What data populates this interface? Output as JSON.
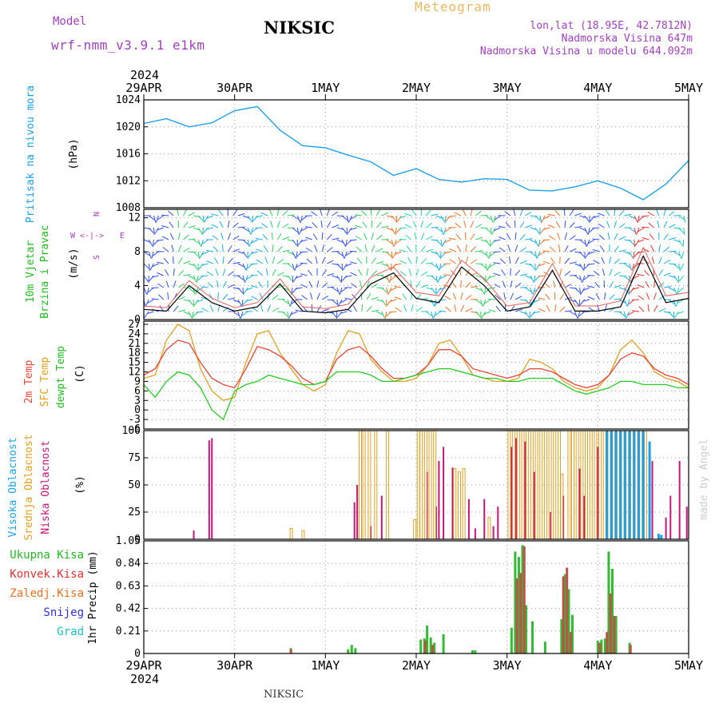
{
  "header": {
    "model_label": "Model",
    "model_name": "wrf-nmm_v3.9.1  e1km",
    "title": "NIKSIC",
    "meteogram_label": "Meteogram",
    "lonlat": "lon,lat (18.95E, 42.7812N)",
    "altitude": "Nadmorska Visina 647m",
    "model_altitude": "Nadmorska Visina u modelu 644.092m",
    "year": "2024",
    "footer_station": "NIKSIC",
    "credit": "made by Angel"
  },
  "time_axis": {
    "labels": [
      "29APR",
      "30APR",
      "1MAY",
      "2MAY",
      "3MAY",
      "4MAY",
      "5MAY"
    ],
    "year": "2024"
  },
  "panels": {
    "pressure": {
      "ylabel_left": "Pritisak na nivou mora",
      "unit": "(hPa)"
    },
    "wind": {
      "ylabel_1": "10m Vjetar",
      "ylabel_2": "Brzina i Pravac",
      "unit": "(m/s)",
      "compass_w": "W",
      "compass_e": "E",
      "compass_n": "N",
      "compass_s": "S",
      "compass_mid": "<-|->"
    },
    "temp": {
      "label_2m": "2m Temp",
      "label_sfc": "SFC Temp",
      "label_dew": "dewpt Temp",
      "unit": "(C)"
    },
    "cloud": {
      "label_high": "Visoka Oblacnost",
      "label_mid": "Srednja Oblacnost",
      "label_low": "Niska Oblacnost",
      "unit": "(%)"
    },
    "precip": {
      "legend": [
        "Ukupna Kisa",
        "Konvek.Kisa",
        "Zaledj.Kisa",
        "Snijeg",
        "Grad"
      ],
      "unit": "1hr Precip (mm)"
    }
  },
  "colors": {
    "pressure": "#1ea0e6",
    "temp2m": "#e8443a",
    "sfc": "#e0a020",
    "dew": "#22cc22",
    "wind_speed": "#000000",
    "wind_gust": "#e0605a",
    "high_cloud": "#1ea0e6",
    "mid_cloud": "#e0a020",
    "low_cloud": "#c8157a",
    "total_rain": "#33bb33",
    "conv_rain": "#c0504a",
    "purple_text": "#a040c0"
  },
  "chart_data": [
    {
      "type": "line",
      "title": "",
      "ylabel": "Pritisak na nivou mora (hPa)",
      "ylim": [
        1008,
        1024
      ],
      "yticks": [
        1008,
        1012,
        1016,
        1020,
        1024
      ],
      "x_days": [
        0,
        0.25,
        0.5,
        0.75,
        1.0,
        1.25,
        1.5,
        1.75,
        2.0,
        2.25,
        2.5,
        2.75,
        3.0,
        3.25,
        3.5,
        3.75,
        4.0,
        4.25,
        4.5,
        4.75,
        5.0,
        5.25,
        5.5,
        5.75,
        6.0
      ],
      "series": [
        {
          "name": "Pritisak na nivou mora",
          "values": [
            1020.5,
            1021.2,
            1020.0,
            1020.6,
            1022.4,
            1023.0,
            1019.5,
            1017.2,
            1016.9,
            1015.8,
            1014.8,
            1012.8,
            1013.8,
            1012.2,
            1011.8,
            1012.3,
            1012.2,
            1010.6,
            1010.5,
            1011.1,
            1012.0,
            1010.9,
            1009.2,
            1011.5,
            1015.0
          ]
        }
      ]
    },
    {
      "type": "line",
      "title": "",
      "ylabel": "10m Vjetar Brzina i Pravac (m/s)",
      "ylim": [
        0,
        13
      ],
      "yticks": [
        0,
        4,
        8,
        12
      ],
      "x_days": [
        0,
        0.25,
        0.5,
        0.75,
        1.0,
        1.25,
        1.5,
        1.75,
        2.0,
        2.25,
        2.5,
        2.75,
        3.0,
        3.25,
        3.5,
        3.75,
        4.0,
        4.25,
        4.5,
        4.75,
        5.0,
        5.25,
        5.5,
        5.75,
        6.0
      ],
      "series": [
        {
          "name": "speed",
          "values": [
            1.2,
            1.0,
            4.0,
            2.0,
            1.0,
            1.5,
            4.2,
            1.0,
            0.8,
            1.2,
            4.2,
            5.5,
            2.5,
            2.0,
            6.2,
            4.0,
            1.0,
            1.5,
            5.8,
            1.0,
            1.0,
            1.5,
            7.5,
            2.0,
            2.5
          ]
        },
        {
          "name": "gust",
          "values": [
            1.6,
            1.4,
            4.6,
            2.5,
            1.4,
            2.0,
            4.8,
            1.5,
            1.3,
            1.8,
            5.0,
            6.2,
            3.2,
            2.8,
            7.0,
            4.8,
            1.6,
            2.0,
            6.6,
            1.6,
            1.6,
            2.2,
            8.5,
            2.8,
            3.2
          ]
        }
      ]
    },
    {
      "type": "line",
      "title": "",
      "ylabel": "Temperature (C)",
      "ylim": [
        -6,
        28
      ],
      "yticks": [
        -6,
        -3,
        0,
        3,
        6,
        9,
        12,
        15,
        18,
        21,
        24,
        27
      ],
      "x_days": [
        0,
        0.125,
        0.25,
        0.375,
        0.5,
        0.625,
        0.75,
        0.875,
        1.0,
        1.125,
        1.25,
        1.375,
        1.5,
        1.625,
        1.75,
        1.875,
        2.0,
        2.125,
        2.25,
        2.375,
        2.5,
        2.625,
        2.75,
        2.875,
        3.0,
        3.125,
        3.25,
        3.375,
        3.5,
        3.625,
        3.75,
        3.875,
        4.0,
        4.125,
        4.25,
        4.375,
        4.5,
        4.625,
        4.75,
        4.875,
        5.0,
        5.125,
        5.25,
        5.375,
        5.5,
        5.625,
        5.75,
        5.875,
        6.0
      ],
      "series": [
        {
          "name": "2m Temp",
          "values": [
            11,
            13,
            19,
            22,
            21,
            15,
            10,
            8,
            7,
            13,
            20,
            19,
            17,
            14,
            10,
            8,
            9,
            16,
            19,
            20,
            17,
            13,
            10,
            10,
            11,
            14,
            19,
            19,
            17,
            13,
            12,
            11,
            10,
            11,
            13,
            13,
            12,
            10,
            8,
            7,
            8,
            11,
            16,
            18,
            17,
            13,
            11,
            10,
            8
          ]
        },
        {
          "name": "SFC Temp",
          "values": [
            10,
            11,
            22,
            27,
            25,
            13,
            6,
            3,
            4,
            15,
            24,
            25,
            18,
            13,
            8,
            6,
            8,
            18,
            25,
            24,
            16,
            12,
            9,
            9,
            10,
            14,
            21,
            22,
            17,
            11,
            10,
            9,
            9,
            10,
            16,
            15,
            13,
            9,
            7,
            6,
            7,
            11,
            19,
            22,
            18,
            12,
            10,
            9,
            7
          ]
        },
        {
          "name": "dewpt Temp",
          "values": [
            8,
            4,
            9,
            12,
            11,
            7,
            0,
            -3,
            6,
            8,
            9,
            11,
            10,
            9,
            8,
            8,
            9,
            12,
            12,
            12,
            11,
            9,
            9,
            10,
            11,
            12,
            13,
            13,
            12,
            11,
            10,
            10,
            9,
            9,
            10,
            10,
            10,
            8,
            6,
            5,
            6,
            7,
            9,
            9,
            8,
            8,
            8,
            7,
            7
          ]
        }
      ]
    },
    {
      "type": "bar",
      "title": "",
      "ylabel": "Oblacnost (%)",
      "ylim": [
        0,
        100
      ],
      "yticks": [
        0,
        25,
        50,
        75,
        100
      ],
      "series": [
        {
          "name": "Niska Oblacnost",
          "bars": [
            [
              0.55,
              8
            ],
            [
              0.72,
              91
            ],
            [
              0.75,
              93
            ],
            [
              2.32,
              34
            ],
            [
              2.35,
              50
            ],
            [
              2.5,
              12
            ],
            [
              2.62,
              40
            ],
            [
              3.12,
              62
            ],
            [
              3.22,
              30
            ],
            [
              3.25,
              72
            ],
            [
              3.3,
              85
            ],
            [
              3.4,
              66
            ],
            [
              3.58,
              37
            ],
            [
              3.65,
              10
            ],
            [
              3.75,
              37
            ],
            [
              3.85,
              12
            ],
            [
              3.9,
              30
            ],
            [
              4.05,
              85
            ],
            [
              4.1,
              93
            ],
            [
              4.2,
              90
            ],
            [
              4.3,
              62
            ],
            [
              4.48,
              25
            ],
            [
              4.62,
              40
            ],
            [
              4.8,
              65
            ],
            [
              4.85,
              40
            ],
            [
              5.0,
              85
            ],
            [
              5.1,
              70
            ],
            [
              5.2,
              95
            ],
            [
              5.35,
              72
            ],
            [
              5.6,
              72
            ],
            [
              5.75,
              20
            ],
            [
              5.8,
              40
            ],
            [
              5.9,
              72
            ],
            [
              5.98,
              30
            ]
          ]
        },
        {
          "name": "Srednja Oblacnost",
          "bars": [
            [
              1.62,
              10
            ],
            [
              1.75,
              8
            ],
            [
              2.38,
              100
            ],
            [
              2.42,
              100
            ],
            [
              2.48,
              100
            ],
            [
              2.55,
              100
            ],
            [
              2.68,
              100
            ],
            [
              2.98,
              18
            ],
            [
              3.02,
              100
            ],
            [
              3.05,
              100
            ],
            [
              3.1,
              100
            ],
            [
              3.15,
              100
            ],
            [
              3.2,
              100
            ],
            [
              3.42,
              65
            ],
            [
              3.47,
              62
            ],
            [
              3.52,
              65
            ],
            [
              3.8,
              20
            ],
            [
              4.02,
              100
            ],
            [
              4.07,
              100
            ],
            [
              4.12,
              100
            ],
            [
              4.17,
              100
            ],
            [
              4.22,
              100
            ],
            [
              4.27,
              100
            ],
            [
              4.32,
              100
            ],
            [
              4.37,
              100
            ],
            [
              4.42,
              100
            ],
            [
              4.47,
              100
            ],
            [
              4.52,
              100
            ],
            [
              4.57,
              100
            ],
            [
              4.6,
              60
            ],
            [
              4.68,
              100
            ],
            [
              4.72,
              100
            ],
            [
              4.77,
              100
            ],
            [
              4.82,
              100
            ],
            [
              4.87,
              100
            ],
            [
              4.92,
              100
            ],
            [
              4.97,
              100
            ],
            [
              5.02,
              100
            ],
            [
              5.07,
              100
            ],
            [
              5.12,
              100
            ],
            [
              5.17,
              100
            ],
            [
              5.22,
              100
            ],
            [
              5.27,
              100
            ],
            [
              5.32,
              100
            ],
            [
              5.37,
              100
            ],
            [
              5.42,
              100
            ],
            [
              5.47,
              100
            ],
            [
              5.52,
              100
            ]
          ]
        },
        {
          "name": "Visoka Oblacnost",
          "bars": [
            [
              5.1,
              100
            ],
            [
              5.15,
              100
            ],
            [
              5.2,
              100
            ],
            [
              5.25,
              100
            ],
            [
              5.3,
              100
            ],
            [
              5.35,
              100
            ],
            [
              5.4,
              100
            ],
            [
              5.45,
              100
            ],
            [
              5.5,
              100
            ],
            [
              5.57,
              90
            ],
            [
              5.67,
              5
            ],
            [
              5.7,
              4
            ]
          ]
        }
      ]
    },
    {
      "type": "bar",
      "title": "",
      "ylabel": "1hr Precip (mm)",
      "ylim": [
        0,
        1.05
      ],
      "yticks": [
        0,
        0.21,
        0.42,
        0.63,
        0.84,
        1.05
      ],
      "series": [
        {
          "name": "Ukupna Kisa",
          "bars": [
            [
              1.62,
              0.05
            ],
            [
              2.25,
              0.04
            ],
            [
              2.29,
              0.08
            ],
            [
              2.33,
              0.05
            ],
            [
              3.05,
              0.13
            ],
            [
              3.09,
              0.14
            ],
            [
              3.12,
              0.26
            ],
            [
              3.16,
              0.15
            ],
            [
              3.2,
              0.1
            ],
            [
              3.3,
              0.18
            ],
            [
              3.62,
              0.03
            ],
            [
              3.65,
              0.03
            ],
            [
              4.05,
              0.24
            ],
            [
              4.09,
              0.95
            ],
            [
              4.13,
              0.9
            ],
            [
              4.17,
              1.01
            ],
            [
              4.21,
              0.45
            ],
            [
              4.28,
              0.3
            ],
            [
              4.42,
              0.11
            ],
            [
              4.6,
              0.32
            ],
            [
              4.64,
              0.74
            ],
            [
              4.68,
              0.6
            ],
            [
              4.72,
              0.36
            ],
            [
              5.0,
              0.12
            ],
            [
              5.04,
              0.13
            ],
            [
              5.08,
              0.14
            ],
            [
              5.12,
              0.95
            ],
            [
              5.16,
              0.79
            ],
            [
              5.2,
              0.35
            ],
            [
              5.35,
              0.1
            ]
          ]
        },
        {
          "name": "Konvek.Kisa",
          "bars": [
            [
              1.62,
              0.04
            ],
            [
              3.1,
              0.12
            ],
            [
              3.18,
              0.08
            ],
            [
              4.11,
              0.7
            ],
            [
              4.15,
              0.75
            ],
            [
              4.19,
              1.0
            ],
            [
              4.62,
              0.72
            ],
            [
              4.66,
              0.8
            ],
            [
              4.7,
              0.2
            ],
            [
              5.02,
              0.1
            ],
            [
              5.1,
              0.2
            ],
            [
              5.14,
              0.56
            ],
            [
              5.18,
              0.35
            ],
            [
              5.36,
              0.08
            ]
          ]
        }
      ]
    }
  ]
}
